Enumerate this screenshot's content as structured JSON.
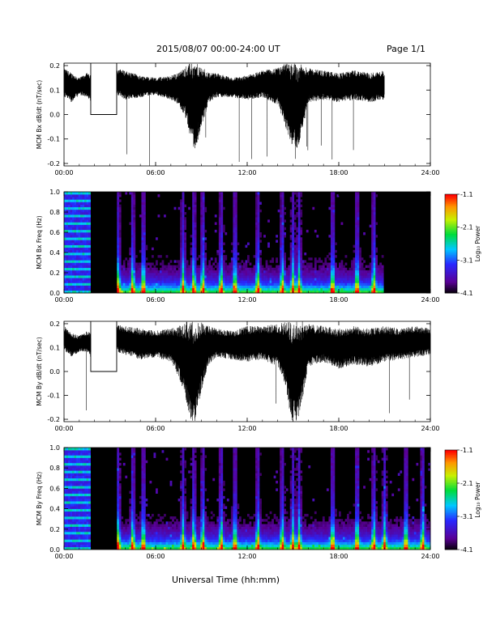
{
  "header": {
    "title": "2015/08/07  00:00-24:00 UT",
    "page": "Page 1/1"
  },
  "x_axis_title": "Universal Time (hh:mm)",
  "colorbar": {
    "title": "Log₁₀ Power",
    "tick_labels": [
      "-1.1",
      "-2.1",
      "-3.1",
      "-4.1"
    ],
    "tick_values": [
      -1.1,
      -2.1,
      -3.1,
      -4.1
    ],
    "range": [
      -4.1,
      -1.1
    ]
  },
  "colors": {
    "background": "#000000",
    "trace": "#000000"
  },
  "chart_data": [
    {
      "type": "line",
      "ylabel": "MCM Bx dB/dt (nT/sec)",
      "x_tick_labels": [
        "00:00",
        "06:00",
        "12:00",
        "18:00",
        "24:00"
      ],
      "y_tick_labels": [
        "0.2",
        "0.1",
        "0.0",
        "-0.1",
        "-0.2"
      ],
      "y_ticks": [
        0.2,
        0.1,
        0.0,
        -0.1,
        -0.2
      ],
      "xlim_hours": [
        0,
        24
      ],
      "ylim": [
        -0.21,
        0.21
      ],
      "data_gaps_hours": [
        [
          1.75,
          3.45
        ],
        [
          21.0,
          24.0
        ]
      ],
      "envelope": {
        "x_hours": [
          0.0,
          0.5,
          1.0,
          1.5,
          1.75,
          3.45,
          4.0,
          5.0,
          6.0,
          7.0,
          7.5,
          8.0,
          8.3,
          8.6,
          9.0,
          9.5,
          10.0,
          11.0,
          12.0,
          13.0,
          14.0,
          14.5,
          14.9,
          15.3,
          15.7,
          16.0,
          17.0,
          18.0,
          19.0,
          20.0,
          21.0
        ],
        "upper": [
          0.19,
          0.17,
          0.15,
          0.17,
          0.16,
          0.19,
          0.18,
          0.16,
          0.15,
          0.16,
          0.17,
          0.2,
          0.21,
          0.21,
          0.2,
          0.17,
          0.17,
          0.15,
          0.16,
          0.18,
          0.19,
          0.21,
          0.21,
          0.21,
          0.2,
          0.19,
          0.18,
          0.17,
          0.18,
          0.17,
          0.18
        ],
        "lower": [
          0.07,
          0.05,
          0.08,
          0.07,
          0.05,
          0.08,
          0.06,
          0.07,
          0.08,
          0.06,
          0.04,
          -0.02,
          -0.1,
          -0.15,
          -0.05,
          0.05,
          0.07,
          0.07,
          0.06,
          0.07,
          0.04,
          -0.05,
          -0.12,
          -0.14,
          -0.04,
          0.05,
          0.06,
          0.05,
          0.06,
          0.05,
          0.06
        ]
      }
    },
    {
      "type": "heatmap",
      "ylabel": "MCM Bx Freq (Hz)",
      "x_tick_labels": [
        "00:00",
        "06:00",
        "12:00",
        "18:00",
        "24:00"
      ],
      "y_tick_labels": [
        "1.0",
        "0.8",
        "0.6",
        "0.4",
        "0.2",
        "0.0"
      ],
      "y_ticks": [
        1.0,
        0.8,
        0.6,
        0.4,
        0.2,
        0.0
      ],
      "xlim_hours": [
        0,
        24
      ],
      "ylim": [
        0,
        1.0
      ],
      "data_gaps_hours": [
        [
          1.75,
          3.45
        ],
        [
          21.0,
          24.0
        ]
      ],
      "bursts_hours": [
        3.55,
        4.5,
        5.2,
        7.8,
        8.5,
        9.1,
        10.3,
        11.2,
        12.7,
        14.3,
        15.0,
        15.4,
        17.6,
        19.2,
        20.3
      ]
    },
    {
      "type": "line",
      "ylabel": "MCM By dB/dt (nT/sec)",
      "x_tick_labels": [
        "00:00",
        "06:00",
        "12:00",
        "18:00",
        "24:00"
      ],
      "y_tick_labels": [
        "0.2",
        "0.1",
        "0.0",
        "-0.1",
        "-0.2"
      ],
      "y_ticks": [
        0.2,
        0.1,
        0.0,
        -0.1,
        -0.2
      ],
      "xlim_hours": [
        0,
        24
      ],
      "ylim": [
        -0.21,
        0.21
      ],
      "data_gaps_hours": [
        [
          1.75,
          3.45
        ]
      ],
      "envelope": {
        "x_hours": [
          0.0,
          0.5,
          1.0,
          1.5,
          1.75,
          3.45,
          4.0,
          5.0,
          6.0,
          7.0,
          7.5,
          8.0,
          8.3,
          8.6,
          9.0,
          9.5,
          10.0,
          11.0,
          12.0,
          13.0,
          14.0,
          14.5,
          14.9,
          15.3,
          15.7,
          16.0,
          17.0,
          18.0,
          19.0,
          20.0,
          21.0,
          22.0,
          23.0,
          24.0
        ],
        "upper": [
          0.19,
          0.16,
          0.15,
          0.17,
          0.16,
          0.2,
          0.19,
          0.18,
          0.17,
          0.18,
          0.19,
          0.21,
          0.21,
          0.21,
          0.21,
          0.19,
          0.18,
          0.17,
          0.19,
          0.19,
          0.2,
          0.21,
          0.21,
          0.21,
          0.21,
          0.2,
          0.19,
          0.18,
          0.19,
          0.18,
          0.19,
          0.18,
          0.19,
          0.18
        ],
        "lower": [
          0.09,
          0.06,
          0.08,
          0.08,
          0.06,
          0.08,
          0.07,
          0.05,
          0.06,
          0.04,
          -0.02,
          -0.12,
          -0.21,
          -0.21,
          -0.08,
          0.03,
          0.06,
          0.05,
          0.04,
          0.05,
          0.02,
          -0.06,
          -0.21,
          -0.21,
          -0.1,
          0.02,
          0.04,
          0.01,
          0.03,
          0.02,
          0.04,
          0.05,
          0.06,
          0.07
        ]
      }
    },
    {
      "type": "heatmap",
      "ylabel": "MCM By Freq (Hz)",
      "x_tick_labels": [
        "00:00",
        "06:00",
        "12:00",
        "18:00",
        "24:00"
      ],
      "y_tick_labels": [
        "1.0",
        "0.8",
        "0.6",
        "0.4",
        "0.2",
        "0.0"
      ],
      "y_ticks": [
        1.0,
        0.8,
        0.6,
        0.4,
        0.2,
        0.0
      ],
      "xlim_hours": [
        0,
        24
      ],
      "ylim": [
        0,
        1.0
      ],
      "data_gaps_hours": [
        [
          1.75,
          3.45
        ]
      ],
      "bursts_hours": [
        3.55,
        4.5,
        5.2,
        7.8,
        8.5,
        9.1,
        10.3,
        11.2,
        12.7,
        14.3,
        15.0,
        15.4,
        17.6,
        19.2,
        20.3,
        21.0,
        22.4,
        23.5
      ]
    }
  ]
}
